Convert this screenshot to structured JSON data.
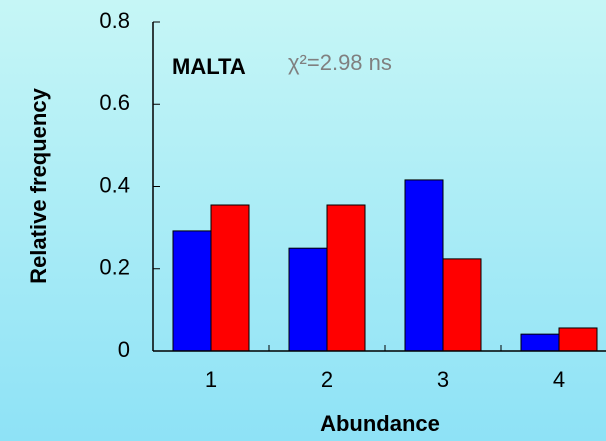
{
  "chart_data": {
    "type": "bar",
    "categories": [
      "1",
      "2",
      "3",
      "4"
    ],
    "series": [
      {
        "color": "#0000ff",
        "values": [
          0.292,
          0.25,
          0.416,
          0.041
        ]
      },
      {
        "color": "#ff0000",
        "values": [
          0.355,
          0.355,
          0.224,
          0.056
        ]
      }
    ],
    "ylim": [
      0,
      0.8
    ],
    "yticks": [
      0,
      0.2,
      0.4,
      0.6,
      0.8
    ],
    "y_label": "Relative frequency",
    "x_label": "Abundance",
    "annotations": [
      "MALTA",
      "χ²=2.98 ns"
    ],
    "grid": false
  }
}
